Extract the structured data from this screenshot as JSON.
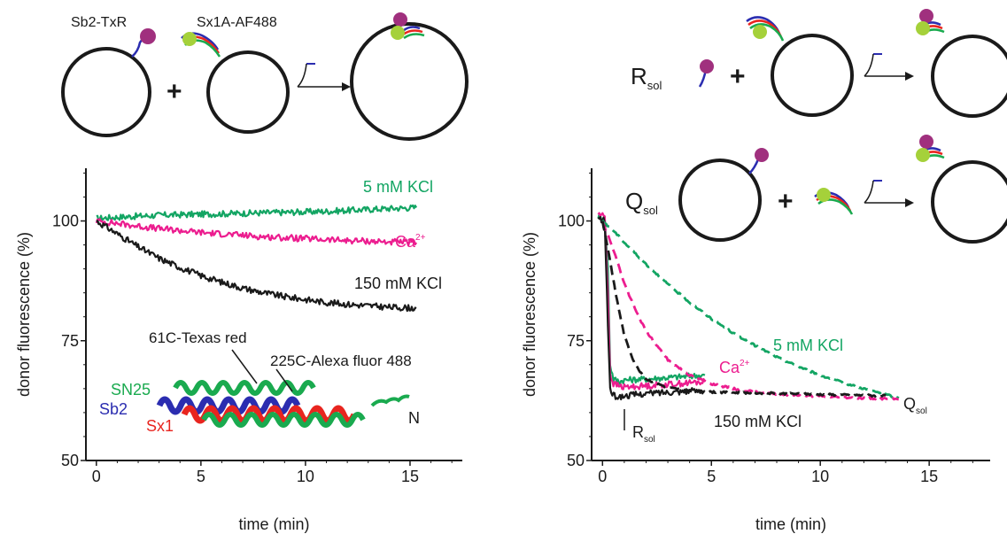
{
  "schematic_left": {
    "label_vesicle1": "Sb2-TxR",
    "label_vesicle2": "Sx1A-AF488",
    "plus": "+"
  },
  "schematic_right": {
    "row1_label": "R",
    "row1_label_sub": "sol",
    "row2_label": "Q",
    "row2_label_sub": "sol",
    "plus": "+"
  },
  "protein_structure": {
    "label_texas_red": "61C-Texas red",
    "label_alexa": "225C-Alexa fluor 488",
    "label_sn25": "SN25",
    "label_sb2": "Sb2",
    "label_sx1": "Sx1",
    "label_n": "N",
    "colors": {
      "sn25": "#1aaa4f",
      "sb2": "#2b2db0",
      "sx1": "#e8251f"
    }
  },
  "colors": {
    "kcl5": "#13a563",
    "ca": "#ec1d8f",
    "kcl150": "#1a1a1a",
    "dye_txr": "#a0307e",
    "dye_af488": "#a5d13a"
  },
  "chart_data": [
    {
      "type": "line",
      "xlabel": "time (min)",
      "ylabel": "donor fluorescence (%)",
      "xlim": [
        -0.5,
        17.5
      ],
      "ylim": [
        50,
        111
      ],
      "xticks": [
        0,
        5,
        10,
        15
      ],
      "yticks": [
        50,
        75,
        100
      ],
      "series": [
        {
          "name": "5 mM KCl",
          "color_key": "kcl5",
          "style": "solid",
          "x": [
            0,
            1,
            2,
            3,
            4,
            5,
            6,
            7,
            8,
            9,
            10,
            11,
            12,
            13,
            14,
            15.3
          ],
          "y": [
            100.5,
            100.8,
            101.0,
            101.2,
            101.3,
            101.4,
            101.5,
            101.6,
            101.7,
            101.8,
            101.9,
            102.0,
            102.2,
            102.4,
            102.6,
            102.8
          ]
        },
        {
          "name": "Ca2+",
          "color_key": "ca",
          "style": "solid",
          "x": [
            0,
            1,
            2,
            3,
            4,
            5,
            6,
            7,
            8,
            9,
            10,
            11,
            12,
            13,
            14,
            15.3
          ],
          "y": [
            100.0,
            99.5,
            98.9,
            98.4,
            98.0,
            97.6,
            97.3,
            97.0,
            96.7,
            96.5,
            96.3,
            96.1,
            95.9,
            95.8,
            95.6,
            95.5
          ]
        },
        {
          "name": "150 mM KCl",
          "color_key": "kcl150",
          "style": "solid",
          "x": [
            0,
            0.5,
            1,
            2,
            3,
            4,
            5,
            6,
            7,
            8,
            9,
            10,
            11,
            12,
            13,
            14,
            15.3
          ],
          "y": [
            100.0,
            98.7,
            97.3,
            94.6,
            92.2,
            90.3,
            88.6,
            87.2,
            86.0,
            85.0,
            84.2,
            83.6,
            83.0,
            82.6,
            82.3,
            82.0,
            81.8
          ]
        }
      ]
    },
    {
      "type": "line",
      "xlabel": "time (min)",
      "ylabel": "donor fluorescence (%)",
      "xlim": [
        -0.5,
        17.8
      ],
      "ylim": [
        50,
        111
      ],
      "xticks": [
        0,
        5,
        10,
        15
      ],
      "yticks": [
        50,
        75,
        100
      ],
      "series": [
        {
          "name": "5 mM KCl",
          "color_key": "kcl5",
          "style": "solid",
          "x": [
            -0.2,
            0.1,
            0.25,
            0.35,
            0.5,
            0.8,
            1,
            2,
            3,
            4,
            4.7
          ],
          "y": [
            101.0,
            100.5,
            90.0,
            70.0,
            67.0,
            66.5,
            66.8,
            67.0,
            67.3,
            67.6,
            67.8
          ]
        },
        {
          "name": "Ca2+",
          "color_key": "ca",
          "style": "solid",
          "x": [
            -0.2,
            0.1,
            0.25,
            0.35,
            0.5,
            0.8,
            1,
            2,
            3,
            4,
            4.7
          ],
          "y": [
            101.5,
            101.0,
            85.0,
            68.0,
            66.0,
            65.5,
            65.3,
            65.6,
            65.9,
            66.2,
            66.4
          ]
        },
        {
          "name": "150 mM KCl",
          "color_key": "kcl150",
          "style": "solid",
          "x": [
            -0.2,
            0.1,
            0.25,
            0.35,
            0.5,
            0.8,
            1,
            2,
            3,
            4,
            4.7
          ],
          "y": [
            100.5,
            100.0,
            78.0,
            65.0,
            63.5,
            63.2,
            63.5,
            64.0,
            64.3,
            64.5,
            64.6
          ]
        },
        {
          "name": "5 mM KCl",
          "color_key": "kcl5",
          "style": "dashed",
          "x": [
            0,
            0.5,
            1,
            2,
            3,
            4,
            5,
            6,
            7,
            8,
            9,
            10,
            11,
            12,
            13,
            13.6
          ],
          "y": [
            100.0,
            98.0,
            95.5,
            91.0,
            86.8,
            83.0,
            79.6,
            76.6,
            74.0,
            71.6,
            69.6,
            67.8,
            66.3,
            65.0,
            63.8,
            63.0
          ]
        },
        {
          "name": "Ca2+",
          "color_key": "ca",
          "style": "dashed",
          "x": [
            0,
            0.5,
            1,
            1.5,
            2,
            3,
            4,
            5,
            6,
            7,
            8,
            9,
            10,
            11,
            12,
            13,
            13.6
          ],
          "y": [
            100.0,
            94.0,
            87.0,
            81.5,
            77.0,
            71.0,
            67.8,
            66.0,
            65.0,
            64.3,
            63.9,
            63.6,
            63.4,
            63.2,
            63.0,
            62.9,
            62.8
          ]
        },
        {
          "name": "150 mM KCl",
          "color_key": "kcl150",
          "style": "dashed",
          "x": [
            0,
            0.3,
            0.6,
            1,
            1.5,
            2,
            3,
            4,
            5,
            6,
            7,
            8,
            9,
            10,
            11,
            12,
            13
          ],
          "y": [
            100.0,
            93.0,
            85.0,
            76.0,
            70.0,
            67.0,
            65.2,
            64.6,
            64.3,
            64.2,
            64.1,
            64.0,
            63.9,
            63.8,
            63.7,
            63.6,
            63.5
          ]
        }
      ]
    }
  ],
  "panel_a_labels": {
    "kcl5": "5 mM KCl",
    "ca_base": "Ca",
    "ca_sup": "2+",
    "kcl150": "150 mM KCl"
  },
  "panel_b_labels": {
    "kcl5": "5 mM KCl",
    "ca_base": "Ca",
    "ca_sup": "2+",
    "kcl150": "150 mM KCl",
    "r_base": "R",
    "r_sub": "sol",
    "q_base": "Q",
    "q_sub": "sol"
  }
}
